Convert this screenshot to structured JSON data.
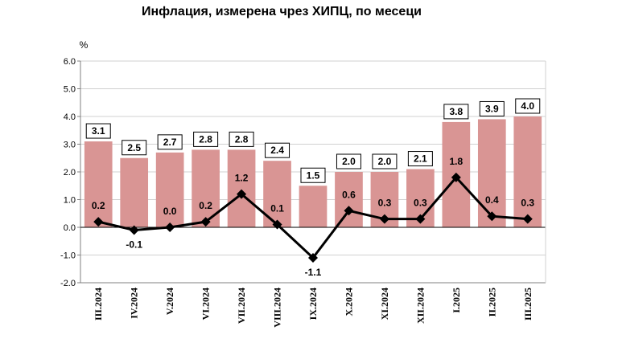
{
  "chart_data": {
    "type": "bar",
    "title": "Инфлация, измерена чрез ХИПЦ, по месеци",
    "ylabel": "%",
    "ylim": [
      -2.0,
      6.0
    ],
    "yticks": [
      "-2.0",
      "-1.0",
      "0.0",
      "1.0",
      "2.0",
      "3.0",
      "4.0",
      "5.0",
      "6.0"
    ],
    "grid": true,
    "categories": [
      "III.2024",
      "IV.2024",
      "V.2024",
      "VI.2024",
      "VII.2024",
      "VIII.2024",
      "IX.2024",
      "X.2024",
      "XI.2024",
      "XII.2024",
      "I.2025",
      "II.2025",
      "III.2025"
    ],
    "series": [
      {
        "type": "bar",
        "values": [
          3.1,
          2.5,
          2.7,
          2.8,
          2.8,
          2.4,
          1.5,
          2.0,
          2.0,
          2.1,
          3.8,
          3.9,
          4.0
        ],
        "labels": [
          "3.1",
          "2.5",
          "2.7",
          "2.8",
          "2.8",
          "2.4",
          "1.5",
          "2.0",
          "2.0",
          "2.1",
          "3.8",
          "3.9",
          "4.0"
        ]
      },
      {
        "type": "line",
        "values": [
          0.2,
          -0.1,
          0.0,
          0.2,
          1.2,
          0.1,
          -1.1,
          0.6,
          0.3,
          0.3,
          1.8,
          0.4,
          0.3
        ],
        "labels": [
          "0.2",
          "-0.1",
          "0.0",
          "0.2",
          "1.2",
          "0.1",
          "-1.1",
          "0.6",
          "0.3",
          "0.3",
          "1.8",
          "0.4",
          "0.3"
        ]
      }
    ],
    "colors": {
      "bar": "#d99594",
      "line": "#000000",
      "grid": "#d0d0d0",
      "axis": "#808080"
    }
  }
}
